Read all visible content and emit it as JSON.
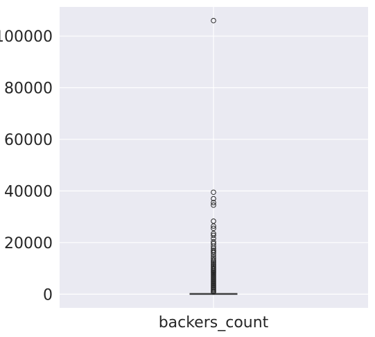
{
  "chart_data": {
    "type": "box",
    "title": "",
    "xlabel": "",
    "ylabel": "",
    "categories": [
      "backers_count"
    ],
    "ylim": [
      -5300,
      111300
    ],
    "yticks": [
      0,
      20000,
      40000,
      60000,
      80000,
      100000
    ],
    "ytick_labels": [
      "0",
      "20000",
      "40000",
      "60000",
      "80000",
      "100000"
    ],
    "grid": true,
    "box": {
      "q1": 0,
      "median": 100,
      "q3": 300,
      "whisker_low": 0,
      "whisker_high": 700
    },
    "outliers": [
      106000,
      39500,
      37000,
      35500,
      34500,
      28300,
      26400,
      25500,
      23500,
      22800,
      21600,
      20300,
      19600,
      18600,
      17800,
      17000,
      16500,
      16000,
      15200,
      14400,
      13800,
      13200,
      12700,
      12200,
      11700,
      11200,
      10700,
      10200,
      9800,
      9400,
      9000,
      8600,
      8200,
      7800,
      7400,
      7000,
      6600,
      6200,
      5800,
      5400,
      5000,
      4600,
      4200,
      3800,
      3400,
      3000,
      2600,
      2200,
      1800,
      1400,
      1000,
      800
    ],
    "colors": {
      "background": "#eaeaf2",
      "grid": "#ffffff",
      "box_fill": "#4c72b0",
      "box_edge": "#3d3d3d",
      "outlier_edge": "#262626"
    }
  }
}
